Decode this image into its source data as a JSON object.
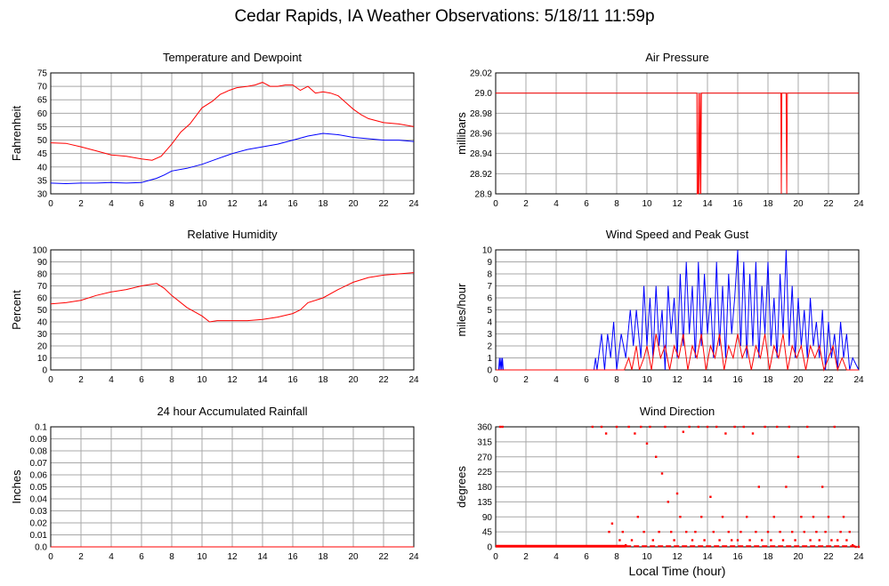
{
  "page": {
    "title": "Cedar Rapids, IA Weather Observations: 5/18/11 11:59p",
    "x_caption": "Local Time (hour)"
  },
  "chart_data": [
    {
      "id": "temp",
      "type": "line",
      "title": "Temperature and Dewpoint",
      "xlabel": "",
      "ylabel": "Fahrenheit",
      "xlim": [
        0,
        24
      ],
      "ylim": [
        30,
        75
      ],
      "x_ticks": [
        "0",
        "2",
        "4",
        "6",
        "8",
        "10",
        "12",
        "14",
        "16",
        "18",
        "20",
        "22",
        "24"
      ],
      "y_ticks": [
        "75",
        "70",
        "65",
        "60",
        "55",
        "50",
        "45",
        "40",
        "35",
        "30"
      ],
      "grid": true,
      "series": [
        {
          "color": "#ff0000",
          "x": [
            0,
            1,
            2,
            3,
            4,
            5,
            6,
            6.7,
            7.3,
            8,
            8.6,
            9.2,
            10,
            10.7,
            11.2,
            11.8,
            12.3,
            13,
            13.5,
            14,
            14.5,
            15,
            15.5,
            16,
            16.5,
            17,
            17.5,
            18,
            18.5,
            19,
            19.5,
            20,
            20.5,
            21,
            22,
            23,
            24
          ],
          "y": [
            49,
            48.8,
            47.5,
            46,
            44.5,
            44,
            43,
            42.5,
            44,
            48.5,
            53,
            56,
            62,
            64.5,
            67,
            68.5,
            69.5,
            70,
            70.5,
            71.5,
            70,
            70,
            70.5,
            70.5,
            68.5,
            70,
            67.5,
            68,
            67.5,
            66.5,
            64,
            61.5,
            59.5,
            58,
            56.5,
            56,
            55
          ]
        },
        {
          "color": "#0000ff",
          "x": [
            0,
            1,
            2,
            3,
            4,
            5,
            6,
            6.5,
            7,
            7.5,
            8,
            9,
            10,
            11,
            12,
            13,
            14,
            15,
            16,
            17,
            18,
            19,
            20,
            21,
            22,
            23,
            24
          ],
          "y": [
            34,
            33.8,
            34,
            34,
            34.2,
            34,
            34.2,
            35,
            35.8,
            37,
            38.5,
            39.5,
            41,
            43,
            45,
            46.5,
            47.5,
            48.5,
            50,
            51.5,
            52.5,
            52,
            51,
            50.5,
            50,
            50,
            49.5
          ]
        }
      ]
    },
    {
      "id": "pressure",
      "type": "line",
      "title": "Air Pressure",
      "xlabel": "",
      "ylabel": "millibars",
      "xlim": [
        0,
        24
      ],
      "ylim": [
        28.9,
        29.02
      ],
      "x_ticks": [
        "0",
        "2",
        "4",
        "6",
        "8",
        "10",
        "12",
        "14",
        "16",
        "18",
        "20",
        "22",
        "24"
      ],
      "y_ticks": [
        "29.02",
        "29.0",
        "28.98",
        "28.96",
        "28.94",
        "28.92",
        "28.9"
      ],
      "grid": true,
      "series": [
        {
          "color": "#ff0000",
          "x": [
            0,
            13.3,
            13.32,
            13.38,
            13.42,
            13.46,
            13.52,
            13.56,
            13.6,
            13.64,
            18.85,
            18.88,
            18.92,
            19.2,
            19.24,
            19.28,
            24
          ],
          "y": [
            29.0,
            29.0,
            28.9,
            28.9,
            29.0,
            28.9,
            29.0,
            28.9,
            29.0,
            29.0,
            29.0,
            28.9,
            29.0,
            29.0,
            28.9,
            29.0,
            29.0
          ]
        }
      ]
    },
    {
      "id": "humidity",
      "type": "line",
      "title": "Relative Humidity",
      "xlabel": "",
      "ylabel": "Percent",
      "xlim": [
        0,
        24
      ],
      "ylim": [
        0,
        100
      ],
      "x_ticks": [
        "0",
        "2",
        "4",
        "6",
        "8",
        "10",
        "12",
        "14",
        "16",
        "18",
        "20",
        "22",
        "24"
      ],
      "y_ticks": [
        "100",
        "90",
        "80",
        "70",
        "60",
        "50",
        "40",
        "30",
        "20",
        "10",
        "0"
      ],
      "grid": true,
      "series": [
        {
          "color": "#ff0000",
          "x": [
            0,
            1,
            2,
            3,
            4,
            5,
            6,
            7,
            7.5,
            8,
            9,
            10,
            10.5,
            11,
            12,
            13,
            14,
            15,
            16,
            16.5,
            17,
            18,
            19,
            20,
            21,
            22,
            23,
            24
          ],
          "y": [
            55,
            56,
            58,
            62,
            65,
            67,
            70,
            72,
            68,
            62,
            52,
            45,
            40,
            41,
            41,
            41,
            42,
            44,
            47,
            50,
            56,
            60,
            67,
            73,
            77,
            79,
            80,
            81
          ]
        }
      ]
    },
    {
      "id": "wind",
      "type": "line",
      "title": "Wind Speed and Peak Gust",
      "xlabel": "",
      "ylabel": "miles/hour",
      "xlim": [
        0,
        24
      ],
      "ylim": [
        0,
        10
      ],
      "x_ticks": [
        "0",
        "2",
        "4",
        "6",
        "8",
        "10",
        "12",
        "14",
        "16",
        "18",
        "20",
        "22",
        "24"
      ],
      "y_ticks": [
        "10",
        "9",
        "8",
        "7",
        "6",
        "5",
        "4",
        "3",
        "2",
        "1",
        "0"
      ],
      "grid": true,
      "series": [
        {
          "color": "#0000ff",
          "x": [
            0,
            0.2,
            0.25,
            0.3,
            0.35,
            0.4,
            0.45,
            0.5,
            6.5,
            6.6,
            6.7,
            7.0,
            7.2,
            7.4,
            7.6,
            7.8,
            8.0,
            8.3,
            8.6,
            8.9,
            9.1,
            9.3,
            9.6,
            9.8,
            10.0,
            10.2,
            10.4,
            10.6,
            10.8,
            11.0,
            11.2,
            11.4,
            11.6,
            11.8,
            12.0,
            12.2,
            12.4,
            12.6,
            12.8,
            13.0,
            13.2,
            13.4,
            13.6,
            13.8,
            14.0,
            14.2,
            14.4,
            14.6,
            14.8,
            15.0,
            15.2,
            15.4,
            15.6,
            15.8,
            16.0,
            16.2,
            16.4,
            16.6,
            16.8,
            17.0,
            17.2,
            17.4,
            17.6,
            17.8,
            18.0,
            18.2,
            18.4,
            18.6,
            18.8,
            19.0,
            19.2,
            19.4,
            19.6,
            19.8,
            20.0,
            20.2,
            20.4,
            20.6,
            20.8,
            21.0,
            21.2,
            21.4,
            21.6,
            21.8,
            22.0,
            22.2,
            22.4,
            22.6,
            22.8,
            23.0,
            23.2,
            23.4,
            23.6,
            24
          ],
          "y": [
            0,
            0,
            1,
            0,
            1,
            0,
            1,
            0,
            0,
            1,
            0,
            3,
            0,
            3,
            1,
            4,
            0,
            3,
            1,
            5,
            2,
            5,
            1,
            7,
            2,
            6,
            1,
            7,
            2,
            5,
            0,
            7,
            3,
            6,
            1,
            8,
            2,
            9,
            3,
            7,
            1,
            9,
            2,
            8,
            3,
            6,
            1,
            9,
            2,
            7,
            1,
            8,
            3,
            6,
            10,
            2,
            9,
            1,
            8,
            2,
            9,
            1,
            7,
            3,
            9,
            2,
            6,
            1,
            8,
            3,
            10,
            2,
            7,
            1,
            6,
            2,
            5,
            1,
            6,
            2,
            4,
            1,
            5,
            0,
            4,
            1,
            3,
            0,
            4,
            1,
            3,
            0,
            1,
            0
          ]
        },
        {
          "color": "#ff0000",
          "x": [
            0,
            8.5,
            8.8,
            9.0,
            9.3,
            9.5,
            9.8,
            10.0,
            10.3,
            10.6,
            10.9,
            11.2,
            11.5,
            11.8,
            12.1,
            12.4,
            12.7,
            13.0,
            13.3,
            13.6,
            13.9,
            14.2,
            14.5,
            14.8,
            15.1,
            15.4,
            15.7,
            16.0,
            16.3,
            16.6,
            16.9,
            17.2,
            17.5,
            17.8,
            18.1,
            18.4,
            18.7,
            19.0,
            19.3,
            19.6,
            19.9,
            20.2,
            20.5,
            20.8,
            21.1,
            21.4,
            21.7,
            22.0,
            22.3,
            22.6,
            22.9,
            23.2,
            24
          ],
          "y": [
            0,
            0,
            1,
            0,
            2,
            0,
            1,
            2,
            0,
            3,
            1,
            2,
            0,
            2,
            1,
            3,
            0,
            2,
            1,
            3,
            0,
            2,
            1,
            3,
            0,
            2,
            1,
            3,
            1,
            2,
            0,
            2,
            1,
            3,
            0,
            2,
            1,
            3,
            0,
            2,
            1,
            2,
            0,
            2,
            1,
            2,
            0,
            1,
            2,
            0,
            1,
            0,
            0
          ]
        }
      ]
    },
    {
      "id": "rain",
      "type": "line",
      "title": "24 hour Accumulated Rainfall",
      "xlabel": "",
      "ylabel": "Inches",
      "xlim": [
        0,
        24
      ],
      "ylim": [
        0,
        0.1
      ],
      "x_ticks": [
        "0",
        "2",
        "4",
        "6",
        "8",
        "10",
        "12",
        "14",
        "16",
        "18",
        "20",
        "22",
        "24"
      ],
      "y_ticks": [
        "0.1",
        "0.09",
        "0.08",
        "0.07",
        "0.06",
        "0.05",
        "0.04",
        "0.03",
        "0.02",
        "0.01",
        "0.0"
      ],
      "grid": true,
      "series": [
        {
          "color": "#ff0000",
          "x": [
            0,
            24
          ],
          "y": [
            0,
            0
          ]
        }
      ]
    },
    {
      "id": "direction",
      "type": "scatter",
      "title": "Wind Direction",
      "xlabel": "Local Time (hour)",
      "ylabel": "degrees",
      "xlim": [
        0,
        24
      ],
      "ylim": [
        0,
        360
      ],
      "x_ticks": [
        "0",
        "2",
        "4",
        "6",
        "8",
        "10",
        "12",
        "14",
        "16",
        "18",
        "20",
        "22",
        "24"
      ],
      "y_ticks": [
        "360",
        "315",
        "270",
        "225",
        "180",
        "135",
        "90",
        "45",
        "0"
      ],
      "grid": true,
      "series": [
        {
          "color": "#ff0000",
          "x": [
            0.3,
            0.45,
            6.4,
            7.0,
            7.3,
            7.5,
            7.7,
            8.0,
            8.2,
            8.4,
            8.6,
            8.8,
            9.0,
            9.2,
            9.4,
            9.6,
            9.8,
            10.0,
            10.2,
            10.4,
            10.6,
            10.8,
            11.0,
            11.2,
            11.4,
            11.6,
            11.8,
            12.0,
            12.2,
            12.4,
            12.6,
            12.8,
            13.0,
            13.2,
            13.4,
            13.6,
            13.8,
            14.0,
            14.2,
            14.4,
            14.6,
            14.8,
            15.0,
            15.2,
            15.4,
            15.6,
            15.8,
            16.0,
            16.2,
            16.4,
            16.6,
            16.8,
            17.0,
            17.2,
            17.4,
            17.6,
            17.8,
            18.0,
            18.2,
            18.4,
            18.6,
            18.8,
            19.0,
            19.2,
            19.4,
            19.6,
            19.8,
            20.0,
            20.2,
            20.4,
            20.6,
            20.8,
            21.0,
            21.2,
            21.4,
            21.6,
            21.8,
            22.0,
            22.2,
            22.4,
            22.6,
            22.8,
            23.0,
            23.2,
            23.4,
            23.6,
            23.8,
            24.0
          ],
          "y": [
            360,
            360,
            360,
            360,
            340,
            45,
            70,
            360,
            20,
            45,
            5,
            360,
            20,
            340,
            90,
            360,
            45,
            310,
            360,
            20,
            270,
            45,
            220,
            360,
            135,
            45,
            20,
            160,
            90,
            345,
            45,
            360,
            20,
            45,
            360,
            90,
            20,
            360,
            150,
            45,
            360,
            20,
            90,
            340,
            45,
            20,
            360,
            20,
            45,
            360,
            90,
            20,
            340,
            45,
            180,
            20,
            360,
            45,
            20,
            90,
            360,
            45,
            20,
            180,
            360,
            45,
            20,
            270,
            90,
            45,
            360,
            20,
            90,
            45,
            20,
            180,
            45,
            90,
            20,
            360,
            20,
            45,
            90,
            20,
            45,
            5,
            0,
            0
          ]
        }
      ]
    }
  ]
}
